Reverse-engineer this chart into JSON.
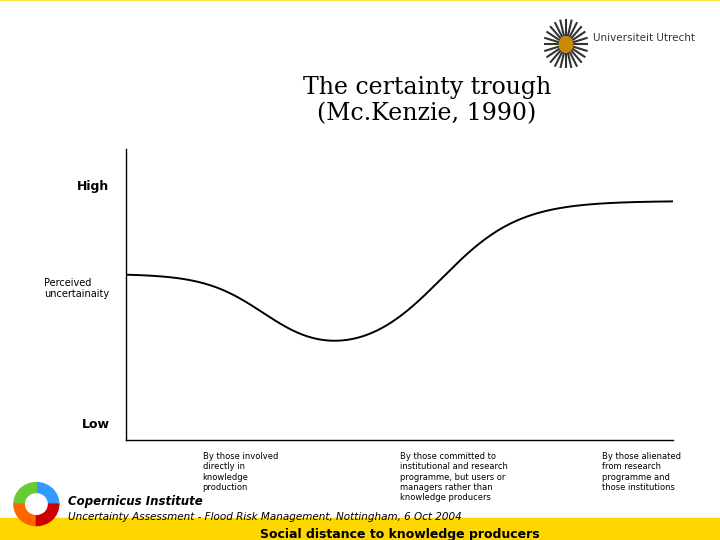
{
  "title": "The certainty trough\n(Mc.Kenzie, 1990)",
  "title_fontsize": 17,
  "ylabel_high": "High",
  "ylabel_low": "Low",
  "ylabel_middle": "Perceived\nuncertainaity",
  "xlabel": "Social distance to knowledge producers",
  "xlabel_fontsize": 9,
  "xtick_labels": [
    "By those involved\ndirectly in\nknowledge\nproduction",
    "By those committed to\ninstitutional and research\nprogramme, but users or\nmanagers rather than\nknowledge producers",
    "By those alienated\nfrom research\nprogramme and\nthose institutions"
  ],
  "footer_institute": "Copernicus Institute",
  "footer_text": "Uncertainty Assessment - Flood Risk Management, Nottingham, 6 Oct 2004",
  "bg_color": "#FFFFFF",
  "header_bg_color": "#FFD700",
  "curve_color": "#000000",
  "line_width": 1.4,
  "logo_colors": [
    "#3399FF",
    "#66CC33",
    "#FF6600",
    "#CC0000"
  ],
  "uu_text": "Universiteit Utrecht",
  "uu_color": "#333333"
}
